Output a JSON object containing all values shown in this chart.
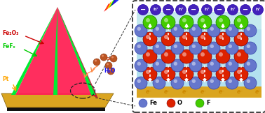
{
  "bg_color": "#ffffff",
  "left_panel": {
    "fe2o3_label": "Fe₂O₃",
    "fe2o3_color": "#cc0000",
    "fefx_label": "FeFₓ",
    "fefx_color": "#00cc00",
    "pt_label": "Pt",
    "pt_color": "#FFA500",
    "h2o_label": "H₂O",
    "h2o_color": "#1a1aff"
  },
  "right_panel": {
    "bg_light_blue": "#aaddee",
    "layer_gold": "#DAA520",
    "fe_color": "#6677cc",
    "o_color": "#dd2200",
    "f_color": "#44cc00",
    "hole_color": "#4422bb",
    "arrow_color": "#ffffff"
  }
}
